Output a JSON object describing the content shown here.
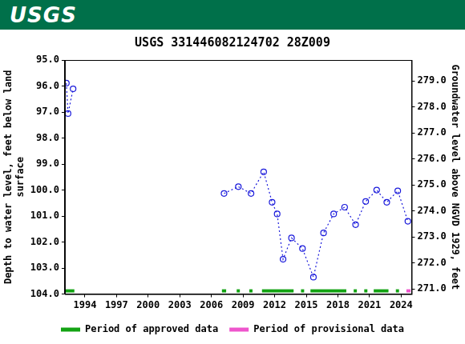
{
  "logo": "USGS",
  "chart_data": {
    "type": "scatter",
    "title": "USGS 331446082124702 28Z009",
    "y_label": [
      "Depth to water level, feet below land",
      "surface"
    ],
    "y2_label": "Groundwater level above NGVD 1929, feet",
    "x": [
      1992.24,
      1992.4,
      1992.88,
      2007.2,
      2008.56,
      2009.76,
      2010.96,
      2011.76,
      2012.24,
      2012.8,
      2013.6,
      2014.64,
      2015.68,
      2016.64,
      2017.6,
      2018.64,
      2019.68,
      2020.64,
      2021.68,
      2022.64,
      2023.68,
      2024.64
    ],
    "values": [
      95.89,
      97.06,
      96.11,
      100.13,
      99.87,
      100.13,
      99.3,
      100.47,
      100.92,
      102.66,
      101.84,
      102.25,
      103.35,
      101.65,
      100.92,
      100.66,
      101.33,
      100.44,
      100.0,
      100.47,
      100.03,
      101.2
    ],
    "color": "#1a1adb",
    "marker": "circle",
    "line_style": "dotted",
    "xlim": [
      1992.1,
      2025.0
    ],
    "xticks": [
      1994,
      1997,
      2000,
      2003,
      2006,
      2009,
      2012,
      2015,
      2018,
      2021,
      2024
    ],
    "ylim": [
      95,
      104
    ],
    "yticks": [
      {
        "value": 95,
        "label": "95.0"
      },
      {
        "value": 96,
        "label": "96.0"
      },
      {
        "value": 97,
        "label": "97.0"
      },
      {
        "value": 98,
        "label": "98.0"
      },
      {
        "value": 99,
        "label": "99.0"
      },
      {
        "value": 100,
        "label": "100.0"
      },
      {
        "value": 101,
        "label": "101.0"
      },
      {
        "value": 102,
        "label": "102.0"
      },
      {
        "value": 103,
        "label": "103.0"
      },
      {
        "value": 104,
        "label": "104.0"
      }
    ],
    "y2lim": [
      270.8,
      279.8
    ],
    "y2ticks": [
      {
        "value": 271,
        "label": "271.0"
      },
      {
        "value": 272,
        "label": "272.0"
      },
      {
        "value": 273,
        "label": "273.0"
      },
      {
        "value": 274,
        "label": "274.0"
      },
      {
        "value": 275,
        "label": "275.0"
      },
      {
        "value": 276,
        "label": "276.0"
      },
      {
        "value": 277,
        "label": "277.0"
      },
      {
        "value": 278,
        "label": "278.0"
      },
      {
        "value": 279,
        "label": "279.0"
      }
    ],
    "grid": false,
    "legend": "bottom",
    "periods": [
      {
        "name": "Period of approved data",
        "color": "#13a313",
        "ranges": [
          [
            1992.1,
            1993.0
          ],
          [
            2007.0,
            2007.4
          ],
          [
            2008.4,
            2008.7
          ],
          [
            2009.6,
            2009.9
          ],
          [
            2010.8,
            2013.8
          ],
          [
            2014.5,
            2014.8
          ],
          [
            2015.4,
            2018.8
          ],
          [
            2019.5,
            2019.8
          ],
          [
            2020.5,
            2020.8
          ],
          [
            2021.4,
            2022.8
          ],
          [
            2023.5,
            2023.8
          ]
        ]
      },
      {
        "name": "Period of provisional data",
        "color": "#ee55cc",
        "ranges": [
          [
            2024.5,
            2024.9
          ]
        ]
      }
    ]
  }
}
